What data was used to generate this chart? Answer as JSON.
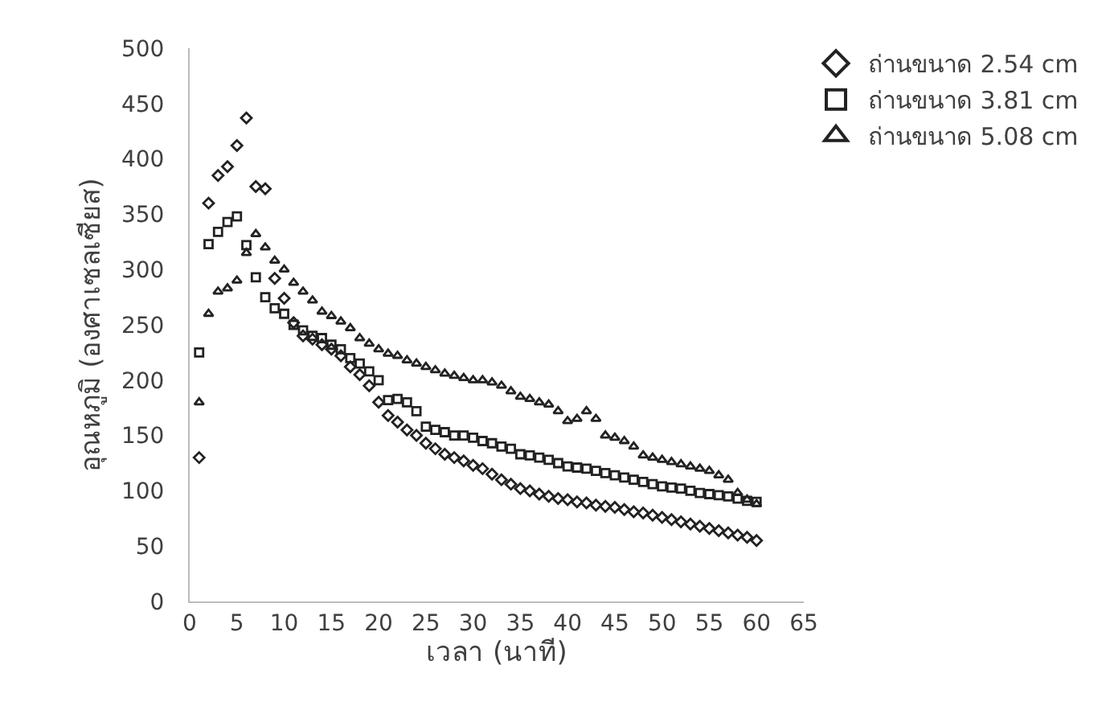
{
  "chart_data": {
    "type": "scatter",
    "xlabel": "เวลา (นาที)",
    "ylabel": "อุณหภูมิ (องศาเซลเซียส)",
    "x": [
      1,
      2,
      3,
      4,
      5,
      6,
      7,
      8,
      9,
      10,
      11,
      12,
      13,
      14,
      15,
      16,
      17,
      18,
      19,
      20,
      21,
      22,
      23,
      24,
      25,
      26,
      27,
      28,
      29,
      30,
      31,
      32,
      33,
      34,
      35,
      36,
      37,
      38,
      39,
      40,
      41,
      42,
      43,
      44,
      45,
      46,
      47,
      48,
      49,
      50,
      51,
      52,
      53,
      54,
      55,
      56,
      57,
      58,
      59,
      60
    ],
    "series": [
      {
        "name": "ถ่านขนาด 2.54 cm",
        "color": "#222222",
        "marker": "diamond",
        "values": [
          130,
          360,
          385,
          393,
          412,
          437,
          375,
          373,
          292,
          274,
          252,
          240,
          237,
          232,
          228,
          222,
          212,
          205,
          195,
          180,
          168,
          162,
          155,
          150,
          143,
          138,
          133,
          130,
          127,
          123,
          120,
          115,
          110,
          106,
          102,
          100,
          97,
          95,
          93,
          92,
          90,
          89,
          87,
          86,
          85,
          83,
          81,
          80,
          78,
          76,
          74,
          72,
          70,
          68,
          66,
          64,
          62,
          60,
          58,
          55
        ]
      },
      {
        "name": "ถ่านขนาด 3.81 cm",
        "color": "#222222",
        "marker": "square",
        "values": [
          225,
          323,
          334,
          343,
          348,
          322,
          293,
          275,
          265,
          260,
          250,
          245,
          240,
          238,
          232,
          228,
          220,
          215,
          208,
          200,
          182,
          183,
          180,
          172,
          158,
          155,
          153,
          150,
          150,
          148,
          145,
          143,
          140,
          138,
          133,
          132,
          130,
          128,
          125,
          122,
          121,
          120,
          118,
          116,
          114,
          112,
          110,
          108,
          106,
          104,
          103,
          102,
          100,
          98,
          97,
          96,
          95,
          93,
          91,
          90
        ]
      },
      {
        "name": "ถ่านขนาด 5.08 cm",
        "color": "#222222",
        "marker": "triangle",
        "values": [
          180,
          260,
          280,
          283,
          290,
          315,
          332,
          320,
          308,
          300,
          288,
          280,
          272,
          262,
          258,
          253,
          247,
          238,
          233,
          228,
          224,
          222,
          218,
          215,
          212,
          209,
          206,
          204,
          202,
          200,
          200,
          198,
          195,
          190,
          185,
          183,
          180,
          178,
          172,
          163,
          165,
          172,
          165,
          150,
          148,
          145,
          140,
          132,
          130,
          128,
          126,
          124,
          122,
          120,
          118,
          114,
          110,
          98,
          92,
          88
        ]
      }
    ],
    "xlim": [
      0,
      65
    ],
    "xticks": [
      0,
      5,
      10,
      15,
      20,
      25,
      30,
      35,
      40,
      45,
      50,
      55,
      60,
      65
    ],
    "ylim": [
      0,
      500
    ],
    "yticks": [
      0,
      50,
      100,
      150,
      200,
      250,
      300,
      350,
      400,
      450,
      500
    ],
    "grid": false,
    "legend": "top right"
  }
}
